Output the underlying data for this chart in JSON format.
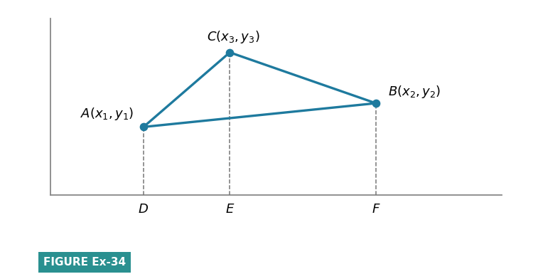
{
  "background_color": "#ffffff",
  "figure_width": 7.57,
  "figure_height": 3.92,
  "dpi": 100,
  "points": {
    "A": [
      2.5,
      2.0
    ],
    "B": [
      6.0,
      2.7
    ],
    "C": [
      3.8,
      4.2
    ]
  },
  "triangle_color": "#1e7a9e",
  "triangle_linewidth": 2.4,
  "dot_color": "#1e7a9e",
  "dot_size": 55,
  "dashed_color": "#777777",
  "dashed_linewidth": 1.1,
  "dashed_style": "--",
  "axis_line_color": "#888888",
  "axis_linewidth": 1.3,
  "label_fontsize": 13,
  "axis_label_fontsize": 13,
  "xlim": [
    0.5,
    8.2
  ],
  "ylim": [
    -1.5,
    5.5
  ],
  "x_axis_y": 0.0,
  "y_axis_x": 1.1,
  "figure_caption": "FIGURE Ex-34",
  "caption_bg_color": "#2a9090",
  "caption_text_color": "#ffffff",
  "caption_fontsize": 11,
  "caption_fontweight": "bold"
}
